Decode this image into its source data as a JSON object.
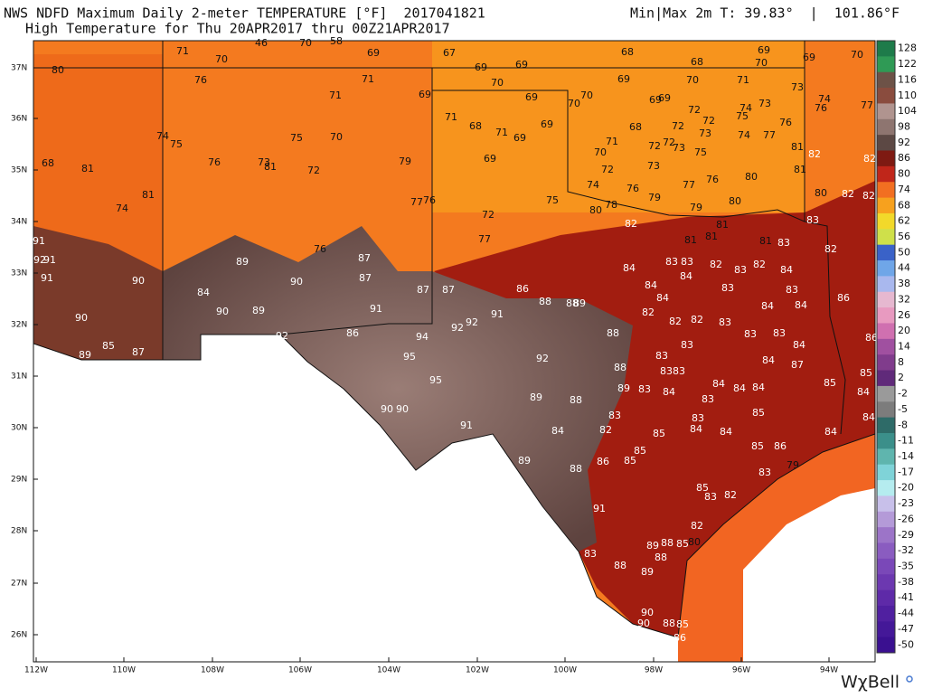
{
  "header": {
    "line1_left": "NWS NDFD Maximum Daily 2-meter TEMPERATURE [°F]  2017041821",
    "line1_right": "Min|Max 2m T: 39.83°  |  101.86°F",
    "line2": "High Temperature for Thu 20APR2017 thru 00Z21APR2017"
  },
  "map": {
    "lat_labels": [
      "37N",
      "36N",
      "35N",
      "34N",
      "33N",
      "32N",
      "31N",
      "30N",
      "29N",
      "28N",
      "27N",
      "26N"
    ],
    "lon_labels": [
      "112W",
      "110W",
      "108W",
      "106W",
      "104W",
      "102W",
      "100W",
      "98W",
      "96W",
      "94W"
    ],
    "stations": [
      80,
      71,
      70,
      76,
      46,
      70,
      58,
      69,
      67,
      69,
      69,
      68,
      69,
      70,
      68,
      69,
      70,
      71,
      69,
      70,
      73,
      74,
      76,
      77,
      70,
      69,
      70,
      70,
      69,
      69,
      72,
      71,
      71,
      69,
      71,
      68,
      71,
      69,
      69,
      69,
      70,
      75,
      74,
      75,
      68,
      81,
      76,
      73,
      81,
      72,
      79,
      81,
      74,
      75,
      77,
      76,
      72,
      77,
      71,
      70,
      72,
      68,
      72,
      72,
      74,
      75,
      73,
      76,
      77,
      74,
      73,
      72,
      72,
      73,
      75,
      73,
      76,
      77,
      80,
      81,
      81,
      82,
      82,
      80,
      82,
      82,
      74,
      78,
      76,
      79,
      80,
      79,
      80,
      82,
      81,
      81,
      81,
      81,
      83,
      83,
      82,
      91,
      92,
      91,
      91,
      90,
      84,
      89,
      90,
      76,
      87,
      87,
      91,
      90,
      89,
      90,
      85,
      87,
      89,
      92,
      86,
      87,
      87,
      86,
      88,
      88,
      89,
      91,
      92,
      92,
      94,
      95,
      95,
      92,
      88,
      88,
      89,
      89,
      88,
      83,
      82,
      84,
      91,
      90,
      90,
      89,
      88,
      86,
      85,
      85,
      85,
      84,
      83,
      83,
      83,
      83,
      83,
      82,
      82,
      84,
      84,
      84,
      83,
      83,
      82,
      83,
      82,
      84,
      83,
      84,
      84,
      83,
      82,
      84,
      83,
      86,
      86,
      84,
      84,
      87,
      83,
      83,
      84,
      83,
      84,
      85,
      84,
      85,
      85,
      84,
      84,
      84,
      85,
      86,
      83,
      79,
      85,
      83,
      82,
      84,
      84,
      83,
      91,
      82,
      80,
      85,
      88,
      89,
      88,
      89,
      88,
      83,
      90,
      90,
      88,
      85,
      86
    ]
  },
  "colorbar": {
    "labels": [
      "128",
      "122",
      "116",
      "110",
      "104",
      "98",
      "92",
      "86",
      "80",
      "74",
      "68",
      "62",
      "56",
      "50",
      "44",
      "38",
      "32",
      "26",
      "20",
      "14",
      "8",
      "2",
      "-2",
      "-5",
      "-8",
      "-11",
      "-14",
      "-17",
      "-20",
      "-23",
      "-26",
      "-29",
      "-32",
      "-35",
      "-38",
      "-41",
      "-44",
      "-47",
      "-50"
    ]
  },
  "logo": "WχBell"
}
